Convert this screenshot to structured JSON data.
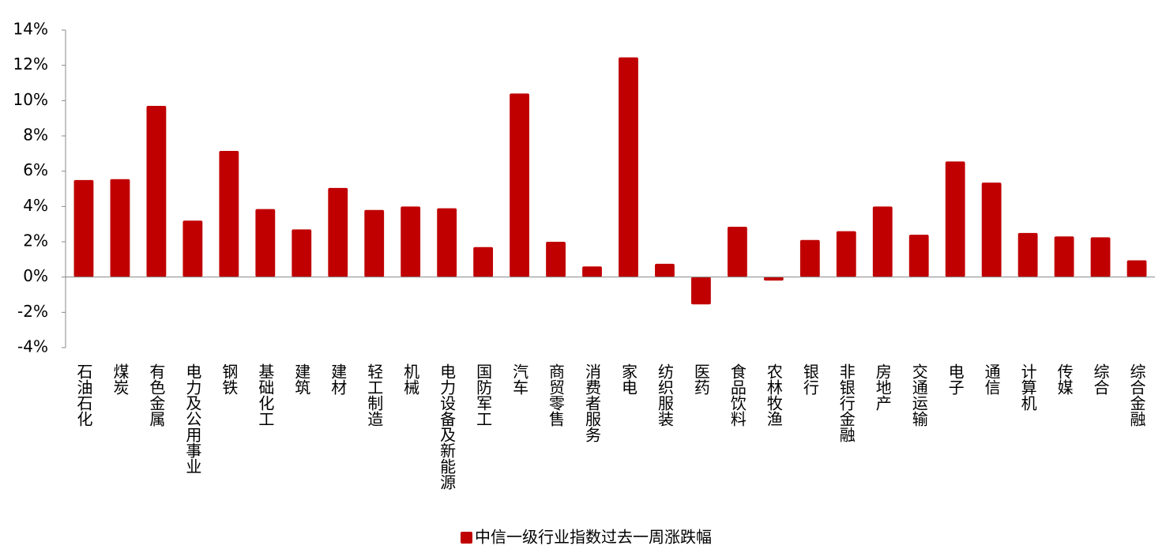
{
  "chart_data": {
    "type": "bar",
    "categories": [
      "石油石化",
      "煤炭",
      "有色金属",
      "电力及公用事业",
      "钢铁",
      "基础化工",
      "建筑",
      "建材",
      "轻工制造",
      "机械",
      "电力设备及新能源",
      "国防军工",
      "汽车",
      "商贸零售",
      "消费者服务",
      "家电",
      "纺织服装",
      "医药",
      "食品饮料",
      "农林牧渔",
      "银行",
      "非银行金融",
      "房地产",
      "交通运输",
      "电子",
      "通信",
      "计算机",
      "传媒",
      "综合",
      "综合金融"
    ],
    "series": [
      {
        "name": "中信一级行业指数过去一周涨跌幅",
        "color": "#c00000",
        "values": [
          5.5,
          5.55,
          9.7,
          3.2,
          7.15,
          3.85,
          2.7,
          5.05,
          3.8,
          4.0,
          3.9,
          1.7,
          10.4,
          2.0,
          0.6,
          12.45,
          0.75,
          -1.55,
          2.85,
          -0.2,
          2.1,
          2.6,
          4.0,
          2.4,
          6.55,
          5.35,
          2.5,
          2.3,
          2.25,
          0.95
        ]
      }
    ],
    "ylim": [
      -4,
      14
    ],
    "yticks": [
      {
        "value": -4,
        "label": "-4%"
      },
      {
        "value": -2,
        "label": "-2%"
      },
      {
        "value": 0,
        "label": "0%"
      },
      {
        "value": 2,
        "label": "2%"
      },
      {
        "value": 4,
        "label": "4%"
      },
      {
        "value": 6,
        "label": "6%"
      },
      {
        "value": 8,
        "label": "8%"
      },
      {
        "value": 10,
        "label": "10%"
      },
      {
        "value": 12,
        "label": "12%"
      },
      {
        "value": 14,
        "label": "14%"
      }
    ],
    "grid": false,
    "legend": "bottom"
  }
}
